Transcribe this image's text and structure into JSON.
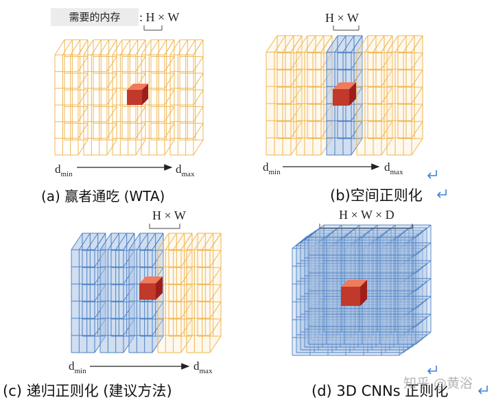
{
  "memory_label": "需要的内存",
  "memory_suffix": ": H × W",
  "colors": {
    "orange": "#f0b44c",
    "blue_fill": "#a9c2e3",
    "blue_edge": "#4b7fc5",
    "red": "#c0392b",
    "enter_arrow": "#3b7dd8"
  },
  "panels": {
    "a": {
      "top_label": "",
      "caption": "(a)   赢者通吃   (WTA)",
      "dmin": "d",
      "dmin_sub": "min",
      "dmax": "d",
      "dmax_sub": "max"
    },
    "b": {
      "top_label": "H × W",
      "caption": "(b)空间正则化",
      "dmin": "d",
      "dmin_sub": "min",
      "dmax": "d",
      "dmax_sub": "max"
    },
    "c": {
      "top_label": "H × W",
      "caption": "(c) 递归正则化 (建议方法)",
      "dmin": "d",
      "dmin_sub": "min",
      "dmax": "d",
      "dmax_sub": "max"
    },
    "d": {
      "top_label": "H × W × D",
      "caption": "(d) 3D CNNs 正则化"
    }
  },
  "watermark": "知乎 @黄浴",
  "icons": [
    "enter-arrow-icon"
  ]
}
